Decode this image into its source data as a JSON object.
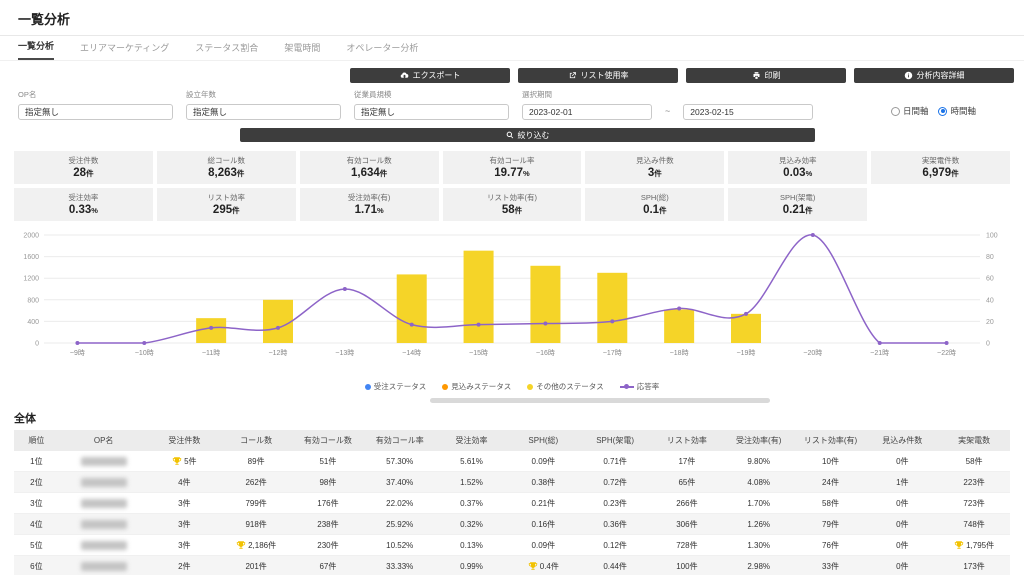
{
  "page": {
    "title": "一覧分析"
  },
  "tabs": [
    {
      "label": "一覧分析",
      "active": true
    },
    {
      "label": "エリアマーケティング",
      "active": false
    },
    {
      "label": "ステータス割合",
      "active": false
    },
    {
      "label": "架電時間",
      "active": false
    },
    {
      "label": "オペレーター分析",
      "active": false
    }
  ],
  "toolbar": {
    "export_label": "エクスポート",
    "list_usage_label": "リスト使用率",
    "print_label": "印刷",
    "detail_label": "分析内容詳細"
  },
  "filters": {
    "op_name_label": "OP名",
    "op_name_value": "指定無し",
    "established_label": "設立年数",
    "established_value": "指定無し",
    "employee_label": "従業員規模",
    "employee_value": "指定無し",
    "period_label": "選択期間",
    "period_from": "2023-02-01",
    "period_to": "2023-02-15",
    "period_separator": "~",
    "axis_options": [
      {
        "label": "日間軸",
        "checked": false
      },
      {
        "label": "時間軸",
        "checked": true
      }
    ],
    "submit_label": "絞り込む"
  },
  "stats": {
    "row1": [
      {
        "label": "受注件数",
        "value": "28",
        "unit": "件"
      },
      {
        "label": "総コール数",
        "value": "8,263",
        "unit": "件"
      },
      {
        "label": "有効コール数",
        "value": "1,634",
        "unit": "件"
      },
      {
        "label": "有効コール率",
        "value": "19.77",
        "unit": "%"
      },
      {
        "label": "見込み件数",
        "value": "3",
        "unit": "件"
      },
      {
        "label": "見込み効率",
        "value": "0.03",
        "unit": "%"
      },
      {
        "label": "実架電件数",
        "value": "6,979",
        "unit": "件"
      }
    ],
    "row2": [
      {
        "label": "受注効率",
        "value": "0.33",
        "unit": "%"
      },
      {
        "label": "リスト効率",
        "value": "295",
        "unit": "件"
      },
      {
        "label": "受注効率(有)",
        "value": "1.71",
        "unit": "%"
      },
      {
        "label": "リスト効率(有)",
        "value": "58",
        "unit": "件"
      },
      {
        "label": "SPH(総)",
        "value": "0.1",
        "unit": "件"
      },
      {
        "label": "SPH(架電)",
        "value": "0.21",
        "unit": "件"
      }
    ]
  },
  "chart_data": {
    "type": "bar",
    "x": [
      "~9時",
      "~10時",
      "~11時",
      "~12時",
      "~13時",
      "~14時",
      "~15時",
      "~16時",
      "~17時",
      "~18時",
      "~19時",
      "~20時",
      "~21時",
      "~22時"
    ],
    "series": [
      {
        "name": "受注ステータス",
        "kind": "bar",
        "color": "#4285f4",
        "values": [
          0,
          0,
          0,
          0,
          0,
          0,
          0,
          0,
          0,
          0,
          0,
          0,
          0,
          0
        ]
      },
      {
        "name": "見込みステータス",
        "kind": "bar",
        "color": "#ff9800",
        "values": [
          0,
          0,
          0,
          0,
          0,
          0,
          0,
          0,
          0,
          0,
          0,
          0,
          0,
          0
        ]
      },
      {
        "name": "その他のステータス",
        "kind": "bar",
        "color": "#f5d428",
        "values": [
          0,
          0,
          460,
          800,
          0,
          1270,
          1710,
          1430,
          1300,
          620,
          540,
          0,
          0,
          0
        ]
      },
      {
        "name": "応答率",
        "kind": "line",
        "axis": "right",
        "color": "#8d64c8",
        "values": [
          0,
          0,
          14,
          14,
          50,
          17,
          17,
          18,
          20,
          32,
          27,
          100,
          0,
          0
        ]
      }
    ],
    "left_axis": {
      "min": 0,
      "max": 2000,
      "ticks": [
        0,
        400,
        800,
        1200,
        1600,
        2000
      ]
    },
    "right_axis": {
      "min": 0,
      "max": 100,
      "ticks": [
        0,
        20,
        40,
        60,
        80,
        100
      ]
    },
    "grid": true,
    "legend_position": "bottom"
  },
  "table": {
    "title": "全体",
    "columns": [
      "順位",
      "OP名",
      "受注件数",
      "コール数",
      "有効コール数",
      "有効コール率",
      "受注効率",
      "SPH(総)",
      "SPH(架電)",
      "リスト効率",
      "受注効率(有)",
      "リスト効率(有)",
      "見込み件数",
      "実架電数"
    ],
    "rows": [
      [
        "1位",
        {
          "redacted": true
        },
        {
          "v": "5件",
          "trophy": true
        },
        "89件",
        "51件",
        "57.30%",
        "5.61%",
        "0.09件",
        "0.71件",
        "17件",
        "9.80%",
        "10件",
        "0件",
        "58件"
      ],
      [
        "2位",
        {
          "redacted": true
        },
        "4件",
        "262件",
        "98件",
        "37.40%",
        "1.52%",
        "0.38件",
        "0.72件",
        "65件",
        "4.08%",
        "24件",
        "1件",
        "223件"
      ],
      [
        "3位",
        {
          "redacted": true
        },
        "3件",
        "799件",
        "176件",
        "22.02%",
        "0.37%",
        "0.21件",
        "0.23件",
        "266件",
        "1.70%",
        "58件",
        "0件",
        "723件"
      ],
      [
        "4位",
        {
          "redacted": true
        },
        "3件",
        "918件",
        "238件",
        "25.92%",
        "0.32%",
        "0.16件",
        "0.36件",
        "306件",
        "1.26%",
        "79件",
        "0件",
        "748件"
      ],
      [
        "5位",
        {
          "redacted": true
        },
        "3件",
        {
          "v": "2,186件",
          "trophy": true
        },
        "230件",
        "10.52%",
        "0.13%",
        "0.09件",
        "0.12件",
        "728件",
        "1.30%",
        "76件",
        "0件",
        {
          "v": "1,795件",
          "trophy": true
        }
      ],
      [
        "6位",
        {
          "redacted": true
        },
        "2件",
        "201件",
        "67件",
        "33.33%",
        "0.99%",
        {
          "v": "0.4件",
          "trophy": true
        },
        "0.44件",
        "100件",
        "2.98%",
        "33件",
        "0件",
        "173件"
      ]
    ]
  },
  "colors": {
    "button_dark": "#3d3d3d",
    "bar_yellow": "#f5d428",
    "line_purple": "#8d64c8",
    "legend_blue": "#4285f4",
    "legend_orange": "#ff9800",
    "radio_checked": "#1a73e8",
    "trophy_gold": "#f2c200"
  }
}
